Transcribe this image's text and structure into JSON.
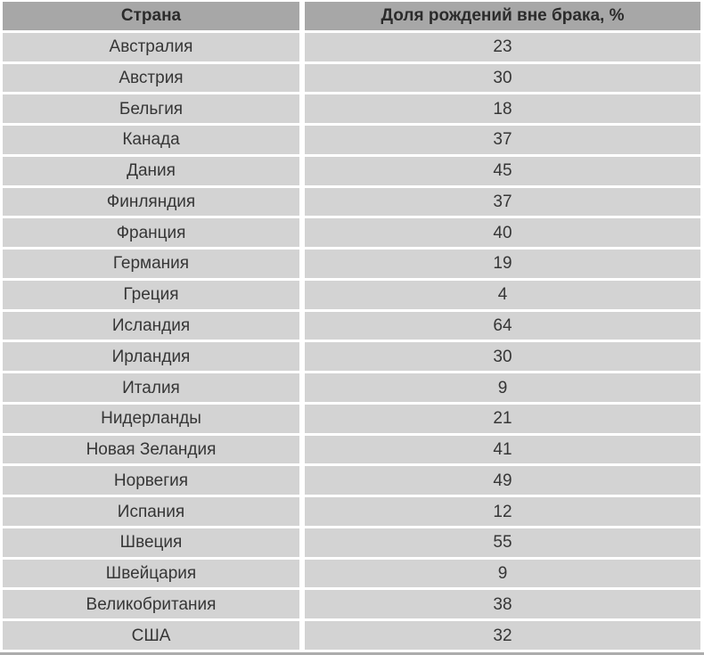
{
  "table": {
    "columns": [
      "Страна",
      "Доля рождений вне брака, %"
    ],
    "rows": [
      {
        "country": "Австралия",
        "value": 23
      },
      {
        "country": "Австрия",
        "value": 30
      },
      {
        "country": "Бельгия",
        "value": 18
      },
      {
        "country": "Канада",
        "value": 37
      },
      {
        "country": "Дания",
        "value": 45
      },
      {
        "country": "Финляндия",
        "value": 37
      },
      {
        "country": "Франция",
        "value": 40
      },
      {
        "country": "Германия",
        "value": 19
      },
      {
        "country": "Греция",
        "value": 4
      },
      {
        "country": "Исландия",
        "value": 64
      },
      {
        "country": "Ирландия",
        "value": 30
      },
      {
        "country": "Италия",
        "value": 9
      },
      {
        "country": "Нидерланды",
        "value": 21
      },
      {
        "country": "Новая Зеландия",
        "value": 41
      },
      {
        "country": "Норвегия",
        "value": 49
      },
      {
        "country": "Испания",
        "value": 12
      },
      {
        "country": "Швеция",
        "value": 55
      },
      {
        "country": "Швейцария",
        "value": 9
      },
      {
        "country": "Великобритания",
        "value": 38
      },
      {
        "country": "США",
        "value": 32
      }
    ]
  },
  "chart_data": {
    "type": "table",
    "title": "Доля рождений вне брака, %",
    "columns": [
      "Страна",
      "Доля рождений вне брака, %"
    ],
    "categories": [
      "Австралия",
      "Австрия",
      "Бельгия",
      "Канада",
      "Дания",
      "Финляндия",
      "Франция",
      "Германия",
      "Греция",
      "Исландия",
      "Ирландия",
      "Италия",
      "Нидерланды",
      "Новая Зеландия",
      "Норвегия",
      "Испания",
      "Швеция",
      "Швейцария",
      "Великобритания",
      "США"
    ],
    "values": [
      23,
      30,
      18,
      37,
      45,
      37,
      40,
      19,
      4,
      64,
      30,
      9,
      21,
      41,
      49,
      12,
      55,
      9,
      38,
      32
    ]
  },
  "colors": {
    "header_bg": "#a7a7a7",
    "row_bg": "#d3d3d3",
    "header_text": "#2b2b2b",
    "row_text": "#363636",
    "page_bg": "#ffffff",
    "bottom_bar": "#acacac"
  }
}
